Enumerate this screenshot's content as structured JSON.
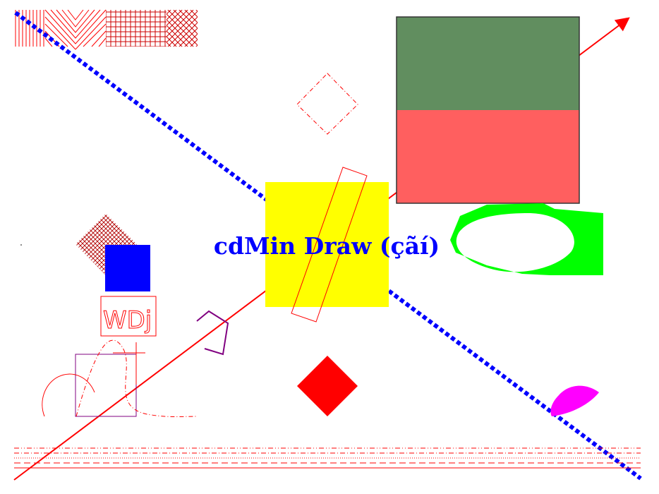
{
  "title_text": "cdMin Draw (çãí)",
  "wdj_text": "WDj",
  "colors": {
    "background": "#ffffff",
    "red": "#ff0000",
    "blue": "#0000ff",
    "yellow": "#ffff00",
    "green": "#00ff00",
    "dark_green": "#618e5f",
    "salmon": "#ff5f5f",
    "magenta": "#ff00ff",
    "purple": "#800080",
    "dark_red": "#b00000"
  }
}
